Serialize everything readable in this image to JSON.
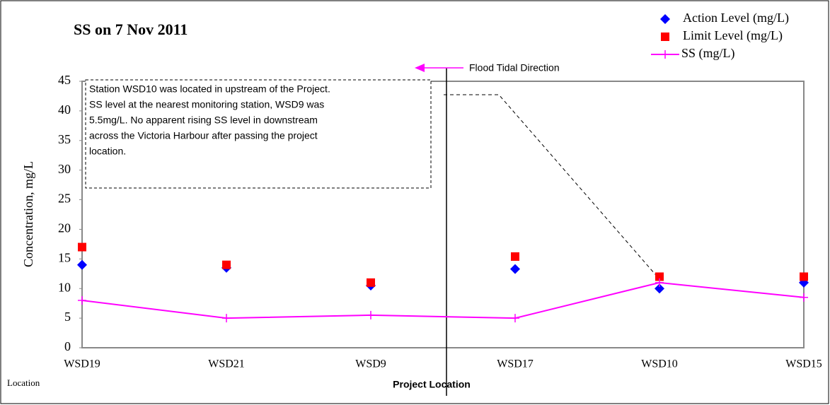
{
  "chart_data": {
    "type": "line",
    "title": "SS on 7 Nov 2011",
    "y_label": "Concentration, mg/L",
    "x_label": "Project Location",
    "corner_label": "Location",
    "direction_label": "Flood Tidal Direction",
    "note_lines": [
      "Station WSD10 was located in upstream of the Project.",
      "SS level at the nearest monitoring station, WSD9 was",
      "5.5mg/L. No apparent rising SS level in downstream",
      "across the Victoria Harbour after passing the project",
      "location."
    ],
    "categories": [
      "WSD19",
      "WSD21",
      "WSD9",
      "WSD17",
      "WSD10",
      "WSD15"
    ],
    "series": [
      {
        "name": "Action Level (mg/L)",
        "color": "#0000ff",
        "marker": "diamond",
        "values": [
          14,
          13.5,
          10.5,
          13.3,
          10,
          11
        ]
      },
      {
        "name": "Limit Level (mg/L)",
        "color": "#ff0000",
        "marker": "square",
        "values": [
          17,
          14,
          11,
          15.4,
          12,
          12
        ]
      },
      {
        "name": "SS (mg/L)",
        "color": "#ff00ff",
        "marker": "plus",
        "line": true,
        "values": [
          8,
          5,
          5.5,
          5,
          11,
          8.5
        ]
      }
    ],
    "ylim": [
      0,
      45
    ],
    "yticks": [
      0,
      5,
      10,
      15,
      20,
      25,
      30,
      35,
      40,
      45
    ],
    "grid": false
  }
}
